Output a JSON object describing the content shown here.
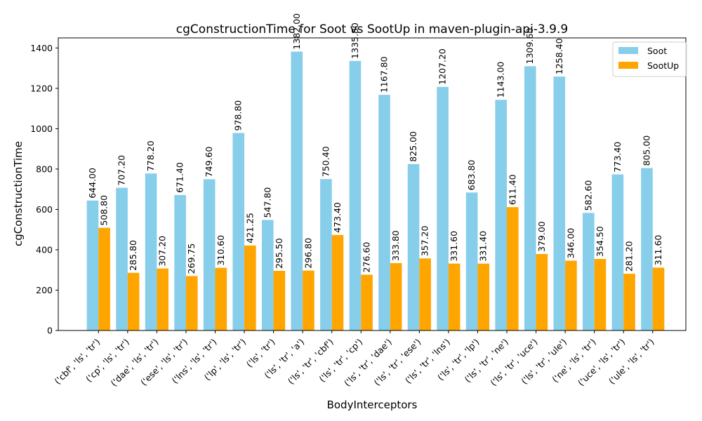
{
  "chart_data": {
    "type": "bar",
    "title": "cgConstructionTime for Soot vs SootUp in maven-plugin-api-3.9.9",
    "xlabel": "BodyInterceptors",
    "ylabel": "cgConstructionTime",
    "ylim": [
      0,
      1450
    ],
    "yticks": [
      0,
      200,
      400,
      600,
      800,
      1000,
      1200,
      1400
    ],
    "grid": false,
    "legend_position": "top-right",
    "categories": [
      "('cbf', 'ls', 'tr')",
      "('cp', 'ls', 'tr')",
      "('dae', 'ls', 'tr')",
      "('ese', 'ls', 'tr')",
      "('lns', 'ls', 'tr')",
      "('lp', 'ls', 'tr')",
      "('ls', 'tr')",
      "('ls', 'tr', 'a')",
      "('ls', 'tr', 'cbf')",
      "('ls', 'tr', 'cp')",
      "('ls', 'tr', 'dae')",
      "('ls', 'tr', 'ese')",
      "('ls', 'tr', 'lns')",
      "('ls', 'tr', 'lp')",
      "('ls', 'tr', 'ne')",
      "('ls', 'tr', 'uce')",
      "('ls', 'tr', 'ule')",
      "('ne', 'ls', 'tr')",
      "('uce', 'ls', 'tr')",
      "('ule', 'ls', 'tr')"
    ],
    "series": [
      {
        "name": "Soot",
        "color": "#87ceeb",
        "values": [
          644.0,
          707.2,
          778.2,
          671.4,
          749.6,
          978.8,
          547.8,
          1382.0,
          750.4,
          1335.8,
          1167.8,
          825.0,
          1207.2,
          683.8,
          1143.0,
          1309.6,
          1258.4,
          582.6,
          773.4,
          805.0
        ]
      },
      {
        "name": "SootUp",
        "color": "#ffa500",
        "values": [
          508.8,
          285.8,
          307.2,
          269.75,
          310.6,
          421.25,
          295.5,
          296.8,
          473.4,
          276.6,
          333.8,
          357.2,
          331.6,
          331.4,
          611.4,
          379.0,
          346.0,
          354.5,
          281.2,
          311.6
        ]
      }
    ]
  }
}
